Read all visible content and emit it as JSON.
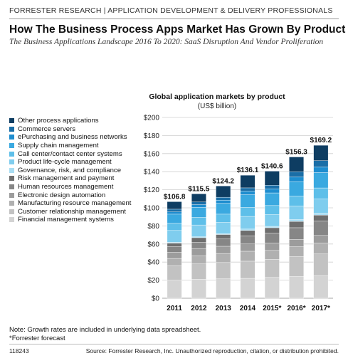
{
  "header": {
    "breadcrumb": "FORRESTER RESEARCH  |  APPLICATION DEVELOPMENT & DELIVERY PROFESSIONALS",
    "title": "How The Business Process Apps Market Has Grown By Product",
    "subtitle": "The Business Applications Landscape 2016 To 2020: SaaS Disruption And Vendor Proliferation"
  },
  "chart_data": {
    "type": "bar",
    "stacked": true,
    "title": "Global application markets by product",
    "unit": "(US$ billion)",
    "categories": [
      "2011",
      "2012",
      "2013",
      "2014",
      "2015*",
      "2016*",
      "2017*"
    ],
    "totals": [
      "$106.8",
      "$115.5",
      "$124.2",
      "$136.1",
      "$140.6",
      "$156.3",
      "$169.2"
    ],
    "total_values": [
      106.8,
      115.5,
      124.2,
      136.1,
      140.6,
      156.3,
      169.2
    ],
    "ylim": [
      0,
      200
    ],
    "yticks": [
      0,
      20,
      40,
      60,
      80,
      100,
      120,
      140,
      160,
      180,
      200
    ],
    "ytick_labels": [
      "$0",
      "$20",
      "$40",
      "$60",
      "$80",
      "$100",
      "$120",
      "$140",
      "$160",
      "$180",
      "$200"
    ],
    "legend_position": "left",
    "series": [
      {
        "name": "Financial management systems",
        "color": "#d3d3d3",
        "values": [
          20,
          21,
          21.5,
          22,
          23,
          24,
          25
        ]
      },
      {
        "name": "Customer relationship management",
        "color": "#c2c2c2",
        "values": [
          16,
          17,
          18,
          19,
          20,
          22,
          24
        ]
      },
      {
        "name": "Manufacturing resource management",
        "color": "#b0b0b0",
        "values": [
          8,
          9,
          10,
          11,
          10,
          11,
          12
        ]
      },
      {
        "name": "Electronic design automation",
        "color": "#9c9c9c",
        "values": [
          7,
          8,
          8,
          8,
          8,
          8,
          8.5
        ]
      },
      {
        "name": "Human resources management",
        "color": "#868686",
        "values": [
          6,
          7,
          8,
          9,
          11,
          13,
          16
        ]
      },
      {
        "name": "Risk management and payment",
        "color": "#6e6e6e",
        "values": [
          4,
          5,
          5,
          6,
          6,
          7,
          6.5
        ]
      },
      {
        "name": "Governance, risk, and compliance",
        "color": "#a9ddf3",
        "values": [
          1,
          1,
          1,
          1.5,
          1.5,
          2,
          2
        ]
      },
      {
        "name": "Product life-cycle management",
        "color": "#7fcdee",
        "values": [
          13,
          13,
          12.5,
          14,
          13,
          15,
          16
        ]
      },
      {
        "name": "Call center/contact center systems",
        "color": "#5ebfe9",
        "values": [
          8,
          8.5,
          9,
          10,
          10,
          11,
          12
        ]
      },
      {
        "name": "Supply chain management",
        "color": "#3aa9e0",
        "values": [
          10,
          11,
          12,
          14,
          14,
          16,
          17
        ]
      },
      {
        "name": "ePurchasing and business networks",
        "color": "#1e8dcf",
        "values": [
          2.5,
          3,
          3.5,
          4,
          4.5,
          5,
          6
        ]
      },
      {
        "name": "Commerce servers",
        "color": "#1a6ea7",
        "values": [
          3,
          3,
          3.2,
          3.6,
          4,
          6,
          7.2
        ]
      },
      {
        "name": "Other process applications",
        "color": "#0e3d62",
        "values": [
          8.3,
          9,
          12.5,
          14,
          15.6,
          16.3,
          17
        ]
      }
    ]
  },
  "notes": {
    "line1": "Note: Growth rates are included in underlying data spreadsheet.",
    "line2": "*Forrester forecast"
  },
  "footer": {
    "id": "118243",
    "source": "Source: Forrester Research, Inc. Unauthorized reproduction, citation, or distribution prohibited."
  }
}
